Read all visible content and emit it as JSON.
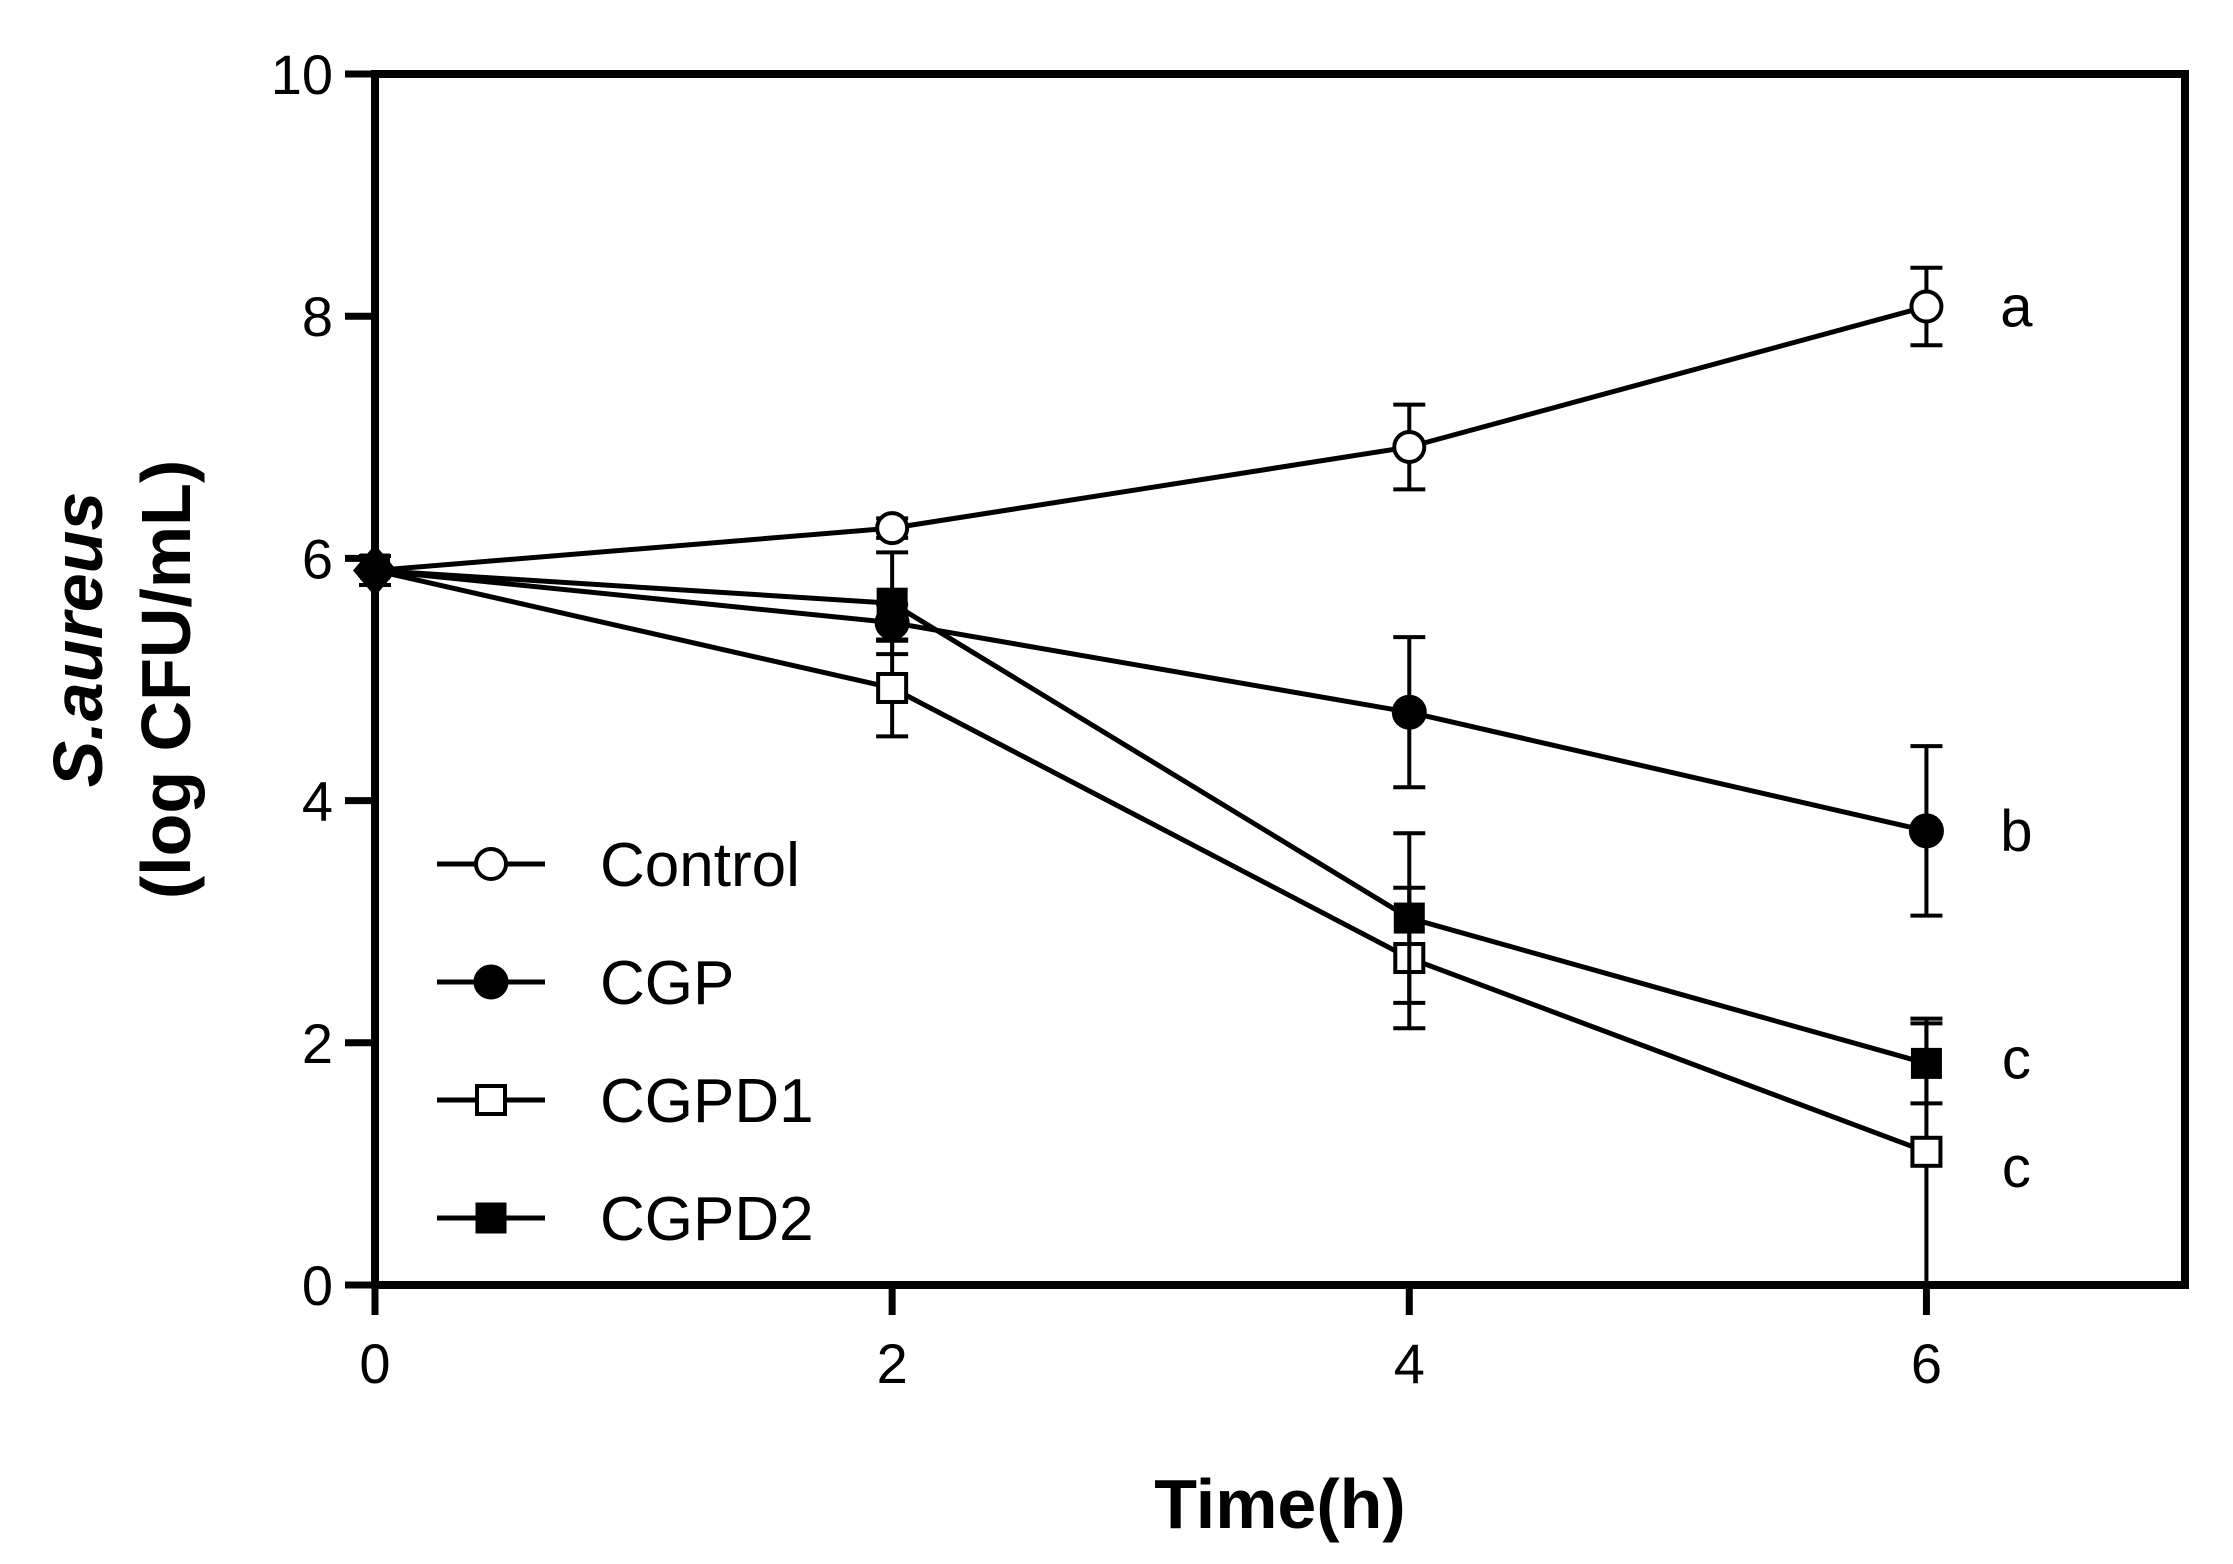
{
  "chart_data": {
    "type": "line",
    "title": "",
    "xlabel": "Time(h)",
    "ylabel_line1_italic": "S.aureus",
    "ylabel_line2": "(log CFU/mL)",
    "xlim": [
      0,
      7
    ],
    "ylim": [
      0,
      10
    ],
    "x_ticks": [
      0,
      2,
      4,
      6
    ],
    "y_ticks": [
      0,
      2,
      4,
      6,
      8,
      10
    ],
    "x_tick_labels": [
      "0",
      "2",
      "4",
      "6"
    ],
    "y_tick_labels": [
      "0",
      "2",
      "4",
      "6",
      "8",
      "10"
    ],
    "x": [
      0,
      2,
      4,
      6
    ],
    "grid": false,
    "legend_position": "bottom-left",
    "series": [
      {
        "name": "Control",
        "marker": "open-circle",
        "values": [
          5.9,
          6.25,
          6.92,
          8.08
        ],
        "errors": [
          0.12,
          0.08,
          0.35,
          0.32
        ],
        "significance": "a"
      },
      {
        "name": "CGP",
        "marker": "filled-circle",
        "values": [
          5.9,
          5.47,
          4.73,
          3.75
        ],
        "errors": [
          0.12,
          0.15,
          0.62,
          0.7
        ],
        "significance": "b"
      },
      {
        "name": "CGPD1",
        "marker": "open-square",
        "values": [
          5.9,
          4.93,
          2.7,
          1.1
        ],
        "errors": [
          0.12,
          0.4,
          0.58,
          1.1
        ],
        "significance": "c"
      },
      {
        "name": "CGPD2",
        "marker": "filled-square",
        "values": [
          5.9,
          5.63,
          3.03,
          1.83
        ],
        "errors": [
          0.12,
          0.42,
          0.7,
          0.33
        ],
        "significance": "c"
      }
    ]
  }
}
